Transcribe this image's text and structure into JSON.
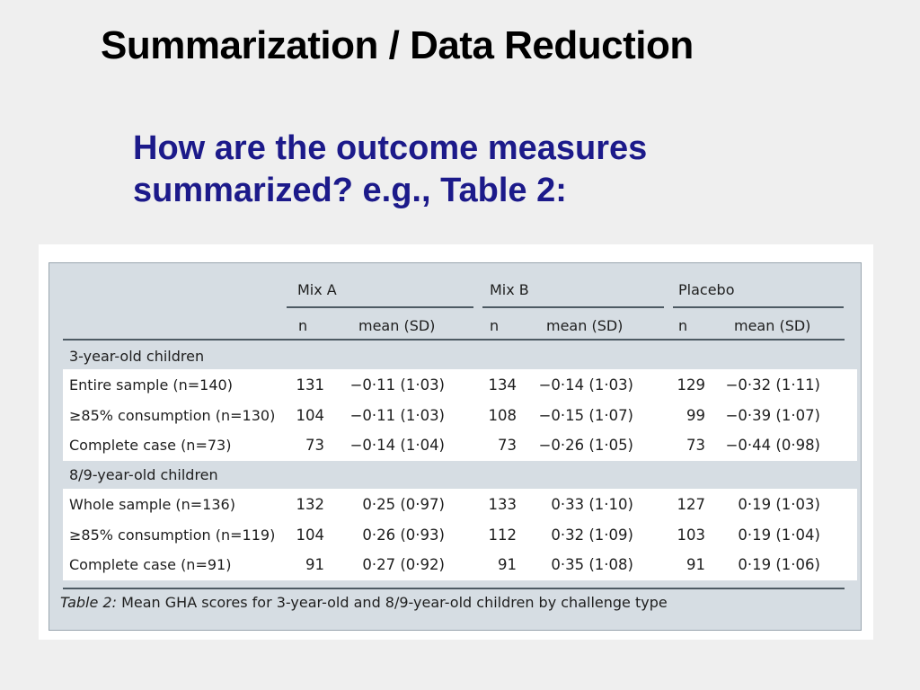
{
  "slide": {
    "title": "Summarization / Data Reduction",
    "subtitle_line1": "How are the outcome measures",
    "subtitle_line2": "summarized? e.g., Table 2:"
  },
  "table": {
    "groups": [
      "Mix A",
      "Mix B",
      "Placebo"
    ],
    "subheaders": {
      "n": "n",
      "mean": "mean (SD)"
    },
    "sections": [
      {
        "label": "3-year-old children",
        "rows": [
          {
            "label": "Entire sample (n=140)",
            "cells": [
              "131",
              "−0·11 (1·03)",
              "134",
              "−0·14 (1·03)",
              "129",
              "−0·32 (1·11)"
            ]
          },
          {
            "label": "≥85% consumption (n=130)",
            "cells": [
              "104",
              "−0·11 (1·03)",
              "108",
              "−0·15 (1·07)",
              "99",
              "−0·39 (1·07)"
            ]
          },
          {
            "label": "Complete case (n=73)",
            "cells": [
              "73",
              "−0·14 (1·04)",
              "73",
              "−0·26 (1·05)",
              "73",
              "−0·44 (0·98)"
            ]
          }
        ]
      },
      {
        "label": "8/9-year-old children",
        "rows": [
          {
            "label": "Whole sample (n=136)",
            "cells": [
              "132",
              "0·25 (0·97)",
              "133",
              "0·33 (1·10)",
              "127",
              "0·19 (1·03)"
            ]
          },
          {
            "label": "≥85% consumption (n=119)",
            "cells": [
              "104",
              "0·26 (0·93)",
              "112",
              "0·32 (1·09)",
              "103",
              "0·19 (1·04)"
            ]
          },
          {
            "label": "Complete case (n=91)",
            "cells": [
              "91",
              "0·27 (0·92)",
              "91",
              "0·35 (1·08)",
              "91",
              "0·19 (1·06)"
            ]
          }
        ]
      }
    ],
    "caption_label": "Table 2:",
    "caption_text": " Mean GHA scores for 3-year-old and 8/9-year-old children by challenge type"
  }
}
